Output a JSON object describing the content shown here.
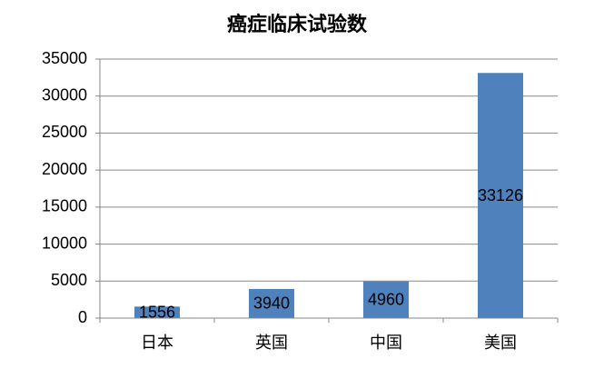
{
  "chart_data": {
    "type": "bar",
    "title": "癌症临床试验数",
    "categories": [
      "日本",
      "英国",
      "中国",
      "美国"
    ],
    "values": [
      1556,
      3940,
      4960,
      33126
    ],
    "color": "#4f81bd",
    "ylim": [
      0,
      35000
    ],
    "yticks": [
      0,
      5000,
      10000,
      15000,
      20000,
      25000,
      30000,
      35000
    ],
    "grid": true
  }
}
